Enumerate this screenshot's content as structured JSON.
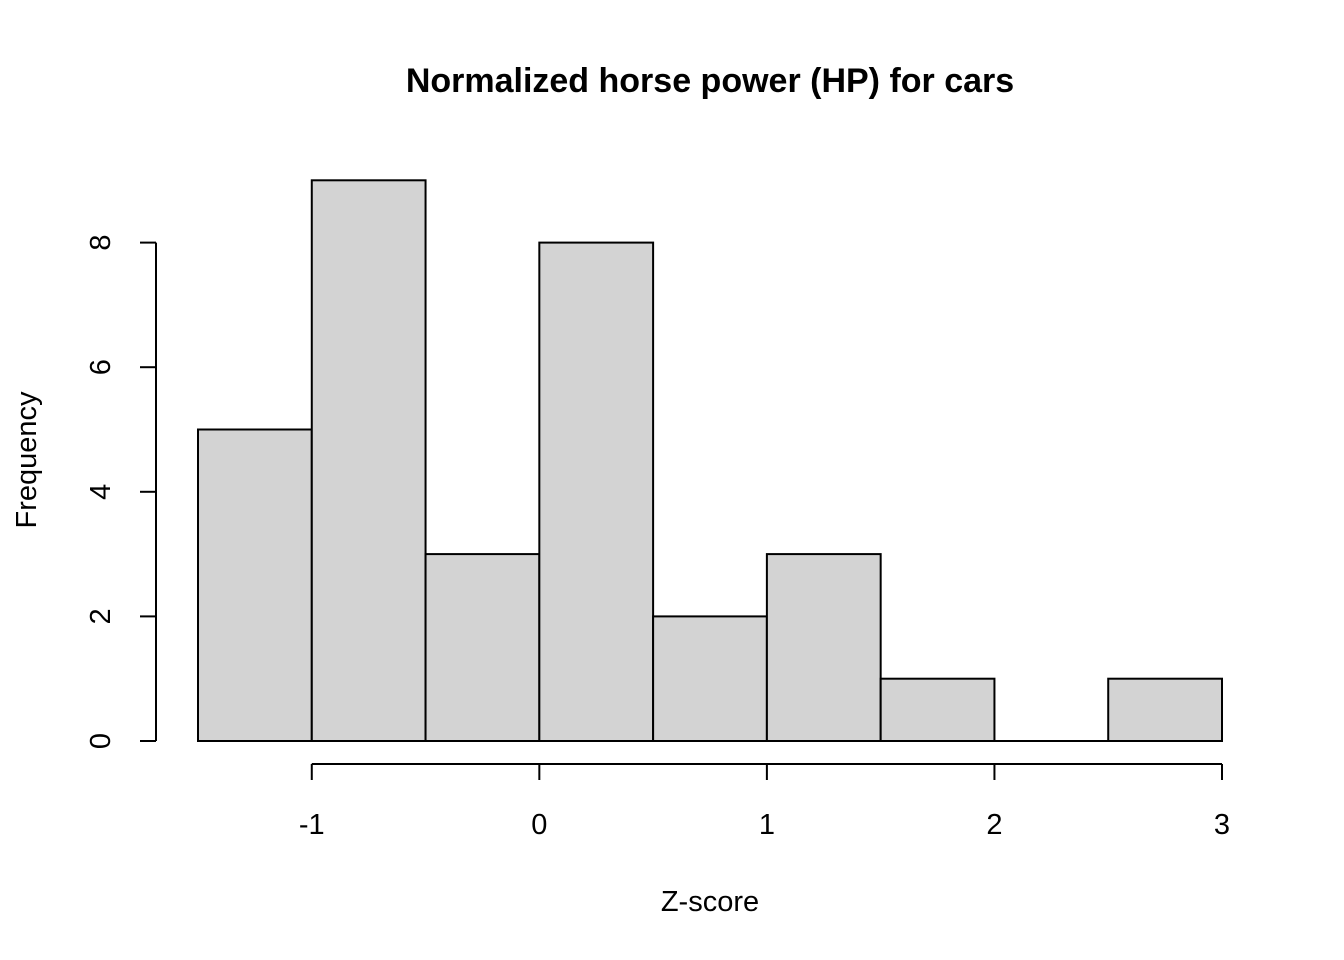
{
  "chart_data": {
    "type": "bar",
    "title": "Normalized horse power (HP) for cars",
    "xlabel": "Z-score",
    "ylabel": "Frequency",
    "bins": [
      {
        "start": -1.5,
        "end": -1.0,
        "count": 5
      },
      {
        "start": -1.0,
        "end": -0.5,
        "count": 9
      },
      {
        "start": -0.5,
        "end": 0.0,
        "count": 3
      },
      {
        "start": 0.0,
        "end": 0.5,
        "count": 8
      },
      {
        "start": 0.5,
        "end": 1.0,
        "count": 2
      },
      {
        "start": 1.0,
        "end": 1.5,
        "count": 3
      },
      {
        "start": 1.5,
        "end": 2.0,
        "count": 1
      },
      {
        "start": 2.0,
        "end": 2.5,
        "count": 0
      },
      {
        "start": 2.5,
        "end": 3.0,
        "count": 1
      }
    ],
    "xlim": [
      -1.5,
      3.0
    ],
    "ylim": [
      0,
      9
    ],
    "x_ticks": [
      -1,
      0,
      1,
      2,
      3
    ],
    "y_ticks": [
      0,
      2,
      4,
      6,
      8
    ],
    "x_tick_labels": [
      "-1",
      "0",
      "1",
      "2",
      "3"
    ],
    "y_tick_labels": [
      "0",
      "2",
      "4",
      "6",
      "8"
    ],
    "bar_fill": "#d3d3d3",
    "bar_stroke": "#000000",
    "grid": false,
    "legend": "none"
  }
}
